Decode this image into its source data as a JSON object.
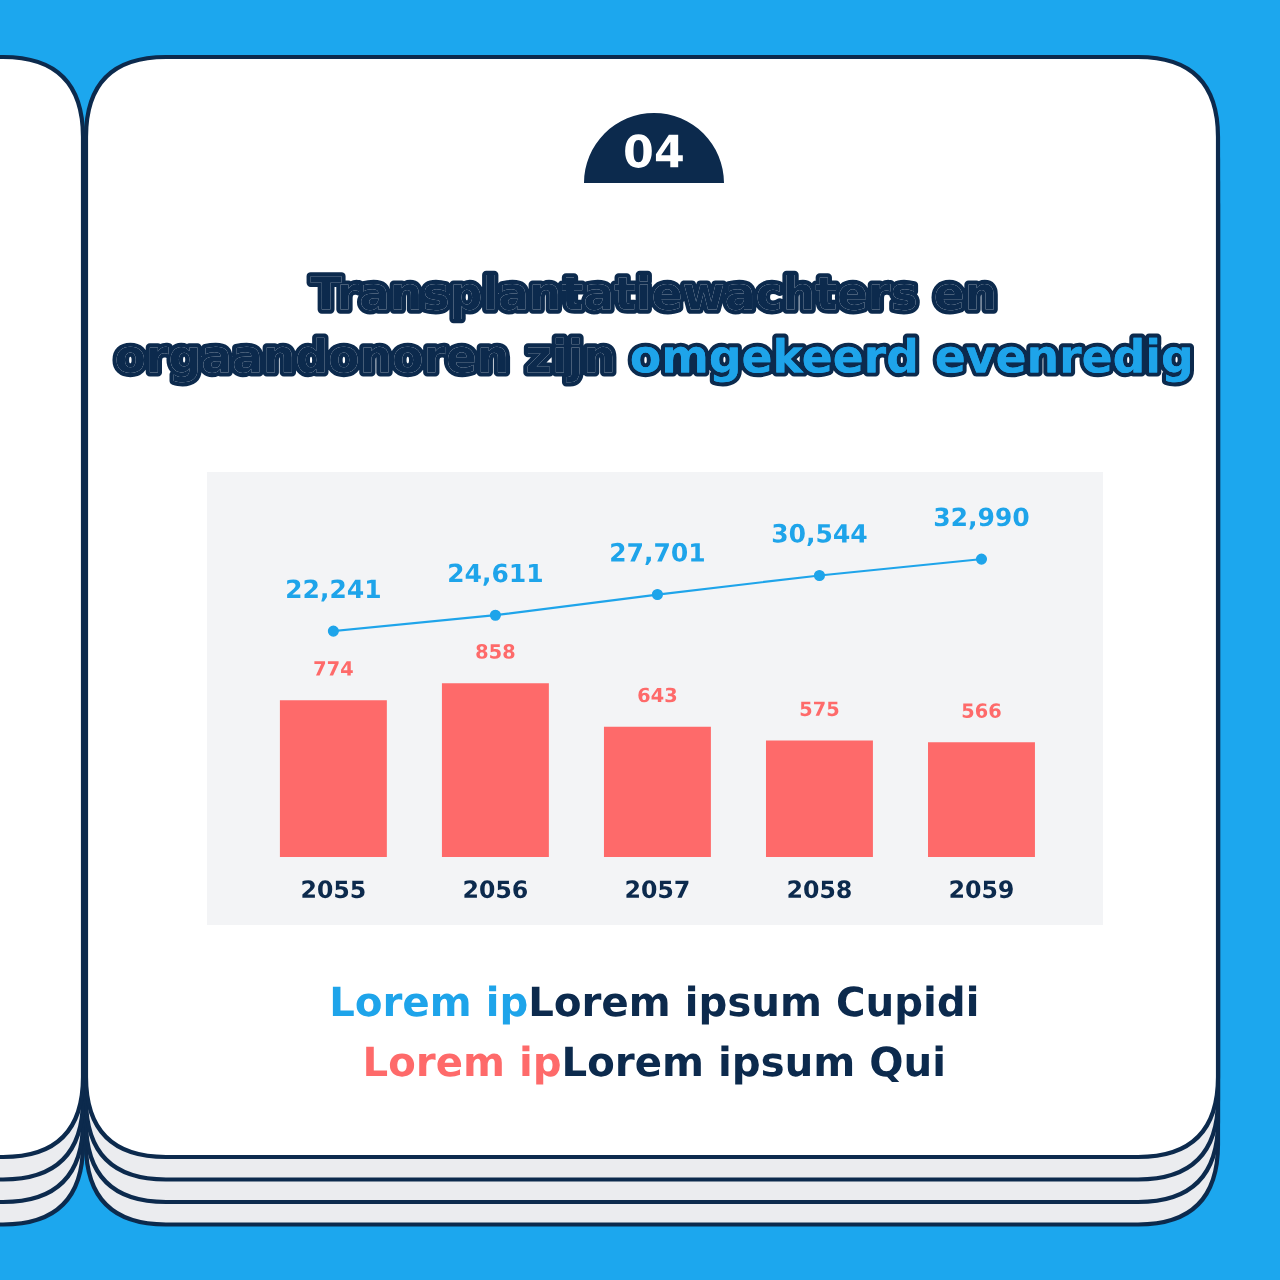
{
  "chart_data": {
    "type": "bar",
    "title": "Transplantatiewachters en",
    "subtitle": "orgaandonoren zijn",
    "categories": [
      "2055",
      "2056",
      "2057",
      "2058",
      "2059"
    ],
    "series": [
      {
        "type": "line",
        "axis": "y2",
        "color": "#1ea4ea",
        "marker": "circle",
        "line_style": "solid",
        "values": [
          22241,
          24611,
          27701,
          30544,
          32990
        ],
        "value_labels": [
          "22,241",
          "24,611",
          "27,701",
          "30,544",
          "32,990"
        ]
      },
      {
        "color": "#fe6a6a",
        "values": [
          774,
          858,
          643,
          575,
          566
        ],
        "value_labels": [
          "774",
          "858",
          "643",
          "575",
          "566"
        ]
      }
    ],
    "ylim": [
      0,
      1900
    ],
    "y2lim": [
      -11500,
      46000
    ],
    "tick_labels": "x",
    "annotations": [
      "04",
      "omgekeerd evenredig",
      "Lorem ip",
      "Lorem ipsum Cupidi",
      "Lorem ip",
      "Lorem ipsum Qui"
    ]
  }
}
